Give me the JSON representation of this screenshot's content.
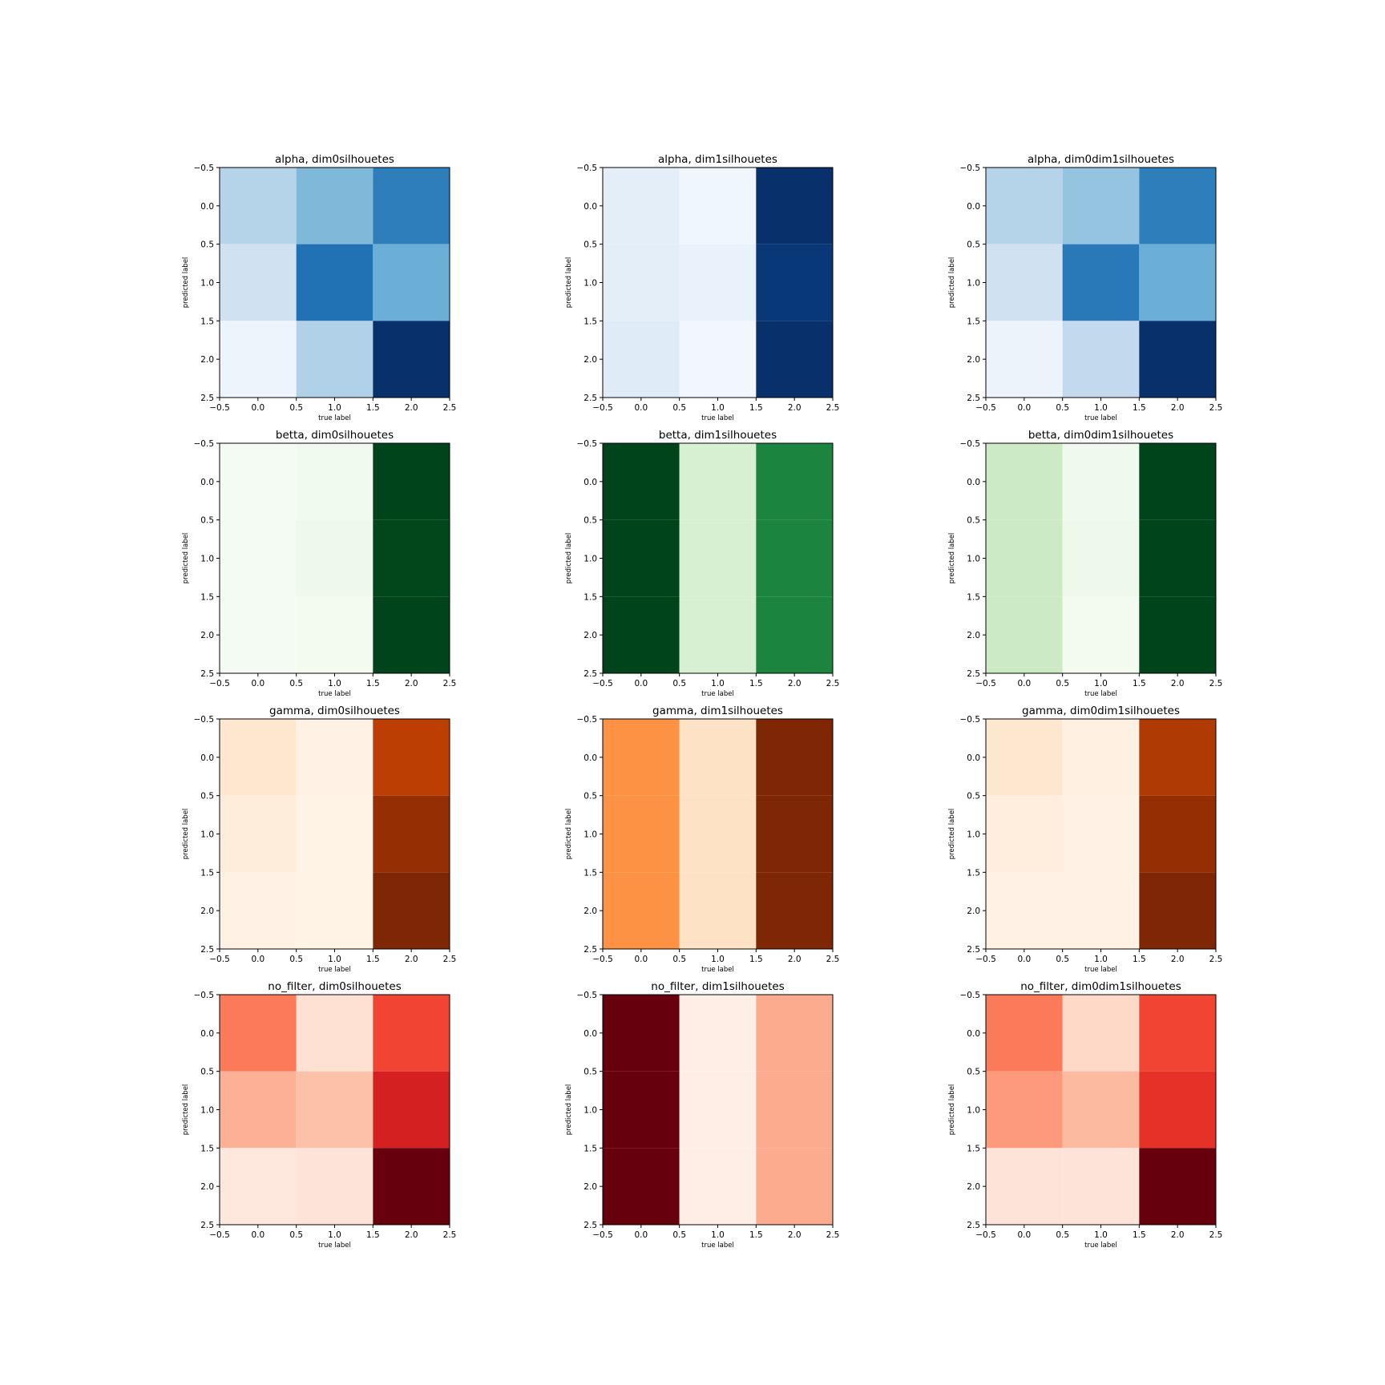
{
  "chart_data": [
    {
      "type": "heatmap",
      "title": "alpha, dim0silhouetes",
      "xlabel": "true label",
      "ylabel": "predicted label",
      "colormap": "Blues",
      "xlim": [
        -0.5,
        2.5
      ],
      "ylim": [
        2.5,
        -0.5
      ],
      "xticks": [
        "−0.5",
        "0.0",
        "0.5",
        "1.0",
        "1.5",
        "2.0",
        "2.5"
      ],
      "yticks": [
        "−0.5",
        "0.0",
        "0.5",
        "1.0",
        "1.5",
        "2.0",
        "2.5"
      ],
      "values": [
        [
          0.3,
          0.45,
          0.7
        ],
        [
          0.2,
          0.75,
          0.5
        ],
        [
          0.05,
          0.32,
          1.0
        ]
      ]
    },
    {
      "type": "heatmap",
      "title": "alpha, dim1silhouetes",
      "xlabel": "true label",
      "ylabel": "predicted label",
      "colormap": "Blues",
      "xlim": [
        -0.5,
        2.5
      ],
      "ylim": [
        2.5,
        -0.5
      ],
      "xticks": [
        "−0.5",
        "0.0",
        "0.5",
        "1.0",
        "1.5",
        "2.0",
        "2.5"
      ],
      "yticks": [
        "−0.5",
        "0.0",
        "0.5",
        "1.0",
        "1.5",
        "2.0",
        "2.5"
      ],
      "values": [
        [
          0.1,
          0.04,
          1.0
        ],
        [
          0.1,
          0.07,
          0.97
        ],
        [
          0.12,
          0.03,
          1.0
        ]
      ]
    },
    {
      "type": "heatmap",
      "title": "alpha, dim0dim1silhouetes",
      "xlabel": "true label",
      "ylabel": "predicted label",
      "colormap": "Blues",
      "xlim": [
        -0.5,
        2.5
      ],
      "ylim": [
        2.5,
        -0.5
      ],
      "xticks": [
        "−0.5",
        "0.0",
        "0.5",
        "1.0",
        "1.5",
        "2.0",
        "2.5"
      ],
      "yticks": [
        "−0.5",
        "0.0",
        "0.5",
        "1.0",
        "1.5",
        "2.0",
        "2.5"
      ],
      "values": [
        [
          0.3,
          0.4,
          0.7
        ],
        [
          0.2,
          0.72,
          0.5
        ],
        [
          0.06,
          0.26,
          1.0
        ]
      ]
    },
    {
      "type": "heatmap",
      "title": "betta, dim0silhouetes",
      "xlabel": "true label",
      "ylabel": "predicted label",
      "colormap": "Greens",
      "xlim": [
        -0.5,
        2.5
      ],
      "ylim": [
        2.5,
        -0.5
      ],
      "xticks": [
        "−0.5",
        "0.0",
        "0.5",
        "1.0",
        "1.5",
        "2.0",
        "2.5"
      ],
      "yticks": [
        "−0.5",
        "0.0",
        "0.5",
        "1.0",
        "1.5",
        "2.0",
        "2.5"
      ],
      "values": [
        [
          0.02,
          0.04,
          1.0
        ],
        [
          0.02,
          0.06,
          0.99
        ],
        [
          0.02,
          0.03,
          1.0
        ]
      ]
    },
    {
      "type": "heatmap",
      "title": "betta, dim1silhouetes",
      "xlabel": "true label",
      "ylabel": "predicted label",
      "colormap": "Greens",
      "xlim": [
        -0.5,
        2.5
      ],
      "ylim": [
        2.5,
        -0.5
      ],
      "xticks": [
        "−0.5",
        "0.0",
        "0.5",
        "1.0",
        "1.5",
        "2.0",
        "2.5"
      ],
      "yticks": [
        "−0.5",
        "0.0",
        "0.5",
        "1.0",
        "1.5",
        "2.0",
        "2.5"
      ],
      "values": [
        [
          1.0,
          0.18,
          0.78
        ],
        [
          1.0,
          0.18,
          0.78
        ],
        [
          1.0,
          0.18,
          0.78
        ]
      ]
    },
    {
      "type": "heatmap",
      "title": "betta, dim0dim1silhouetes",
      "xlabel": "true label",
      "ylabel": "predicted label",
      "colormap": "Greens",
      "xlim": [
        -0.5,
        2.5
      ],
      "ylim": [
        2.5,
        -0.5
      ],
      "xticks": [
        "−0.5",
        "0.0",
        "0.5",
        "1.0",
        "1.5",
        "2.0",
        "2.5"
      ],
      "yticks": [
        "−0.5",
        "0.0",
        "0.5",
        "1.0",
        "1.5",
        "2.0",
        "2.5"
      ],
      "values": [
        [
          0.23,
          0.05,
          1.0
        ],
        [
          0.23,
          0.06,
          1.0
        ],
        [
          0.23,
          0.03,
          1.0
        ]
      ]
    },
    {
      "type": "heatmap",
      "title": "gamma, dim0silhouetes",
      "xlabel": "true label",
      "ylabel": "predicted label",
      "colormap": "Oranges",
      "xlim": [
        -0.5,
        2.5
      ],
      "ylim": [
        2.5,
        -0.5
      ],
      "xticks": [
        "−0.5",
        "0.0",
        "0.5",
        "1.0",
        "1.5",
        "2.0",
        "2.5"
      ],
      "yticks": [
        "−0.5",
        "0.0",
        "0.5",
        "1.0",
        "1.5",
        "2.0",
        "2.5"
      ],
      "values": [
        [
          0.12,
          0.03,
          0.82
        ],
        [
          0.07,
          0.02,
          0.93
        ],
        [
          0.03,
          0.02,
          1.0
        ]
      ]
    },
    {
      "type": "heatmap",
      "title": "gamma, dim1silhouetes",
      "xlabel": "true label",
      "ylabel": "predicted label",
      "colormap": "Oranges",
      "xlim": [
        -0.5,
        2.5
      ],
      "ylim": [
        2.5,
        -0.5
      ],
      "xticks": [
        "−0.5",
        "0.0",
        "0.5",
        "1.0",
        "1.5",
        "2.0",
        "2.5"
      ],
      "yticks": [
        "−0.5",
        "0.0",
        "0.5",
        "1.0",
        "1.5",
        "2.0",
        "2.5"
      ],
      "values": [
        [
          0.48,
          0.15,
          1.0
        ],
        [
          0.48,
          0.15,
          1.0
        ],
        [
          0.48,
          0.15,
          1.0
        ]
      ]
    },
    {
      "type": "heatmap",
      "title": "gamma, dim0dim1silhouetes",
      "xlabel": "true label",
      "ylabel": "predicted label",
      "colormap": "Oranges",
      "xlim": [
        -0.5,
        2.5
      ],
      "ylim": [
        2.5,
        -0.5
      ],
      "xticks": [
        "−0.5",
        "0.0",
        "0.5",
        "1.0",
        "1.5",
        "2.0",
        "2.5"
      ],
      "yticks": [
        "−0.5",
        "0.0",
        "0.5",
        "1.0",
        "1.5",
        "2.0",
        "2.5"
      ],
      "values": [
        [
          0.12,
          0.04,
          0.85
        ],
        [
          0.06,
          0.03,
          0.93
        ],
        [
          0.03,
          0.03,
          1.0
        ]
      ]
    },
    {
      "type": "heatmap",
      "title": "no_filter, dim0silhouetes",
      "xlabel": "true label",
      "ylabel": "predicted label",
      "colormap": "Reds",
      "xlim": [
        -0.5,
        2.5
      ],
      "ylim": [
        2.5,
        -0.5
      ],
      "xticks": [
        "−0.5",
        "0.0",
        "0.5",
        "1.0",
        "1.5",
        "2.0",
        "2.5"
      ],
      "yticks": [
        "−0.5",
        "0.0",
        "0.5",
        "1.0",
        "1.5",
        "2.0",
        "2.5"
      ],
      "values": [
        [
          0.45,
          0.12,
          0.6
        ],
        [
          0.28,
          0.23,
          0.72
        ],
        [
          0.08,
          0.1,
          1.0
        ]
      ]
    },
    {
      "type": "heatmap",
      "title": "no_filter, dim1silhouetes",
      "xlabel": "true label",
      "ylabel": "predicted label",
      "colormap": "Reds",
      "xlim": [
        -0.5,
        2.5
      ],
      "ylim": [
        2.5,
        -0.5
      ],
      "xticks": [
        "−0.5",
        "0.0",
        "0.5",
        "1.0",
        "1.5",
        "2.0",
        "2.5"
      ],
      "yticks": [
        "−0.5",
        "0.0",
        "0.5",
        "1.0",
        "1.5",
        "2.0",
        "2.5"
      ],
      "values": [
        [
          1.0,
          0.04,
          0.3
        ],
        [
          1.0,
          0.04,
          0.3
        ],
        [
          1.0,
          0.04,
          0.3
        ]
      ]
    },
    {
      "type": "heatmap",
      "title": "no_filter, dim0dim1silhouetes",
      "xlabel": "true label",
      "ylabel": "predicted label",
      "colormap": "Reds",
      "xlim": [
        -0.5,
        2.5
      ],
      "ylim": [
        2.5,
        -0.5
      ],
      "xticks": [
        "−0.5",
        "0.0",
        "0.5",
        "1.0",
        "1.5",
        "2.0",
        "2.5"
      ],
      "yticks": [
        "−0.5",
        "0.0",
        "0.5",
        "1.0",
        "1.5",
        "2.0",
        "2.5"
      ],
      "values": [
        [
          0.45,
          0.15,
          0.6
        ],
        [
          0.35,
          0.25,
          0.66
        ],
        [
          0.1,
          0.1,
          1.0
        ]
      ]
    }
  ],
  "colormaps": {
    "Blues": [
      "#f7fbff",
      "#deebf7",
      "#c6dbef",
      "#9ecae1",
      "#6baed6",
      "#4292c6",
      "#2171b5",
      "#08519c",
      "#08306b"
    ],
    "Greens": [
      "#f7fcf5",
      "#e5f5e0",
      "#c7e9c0",
      "#a1d99b",
      "#74c476",
      "#41ab5d",
      "#238b45",
      "#006d2c",
      "#00441b"
    ],
    "Oranges": [
      "#fff5eb",
      "#fee6ce",
      "#fdd0a2",
      "#fdae6b",
      "#fd8d3c",
      "#f16913",
      "#d94801",
      "#a63603",
      "#7f2704"
    ],
    "Reds": [
      "#fff5f0",
      "#fee0d2",
      "#fcbba1",
      "#fc9272",
      "#fb6a4a",
      "#ef3b2c",
      "#cb181d",
      "#a50f15",
      "#67000d"
    ]
  }
}
